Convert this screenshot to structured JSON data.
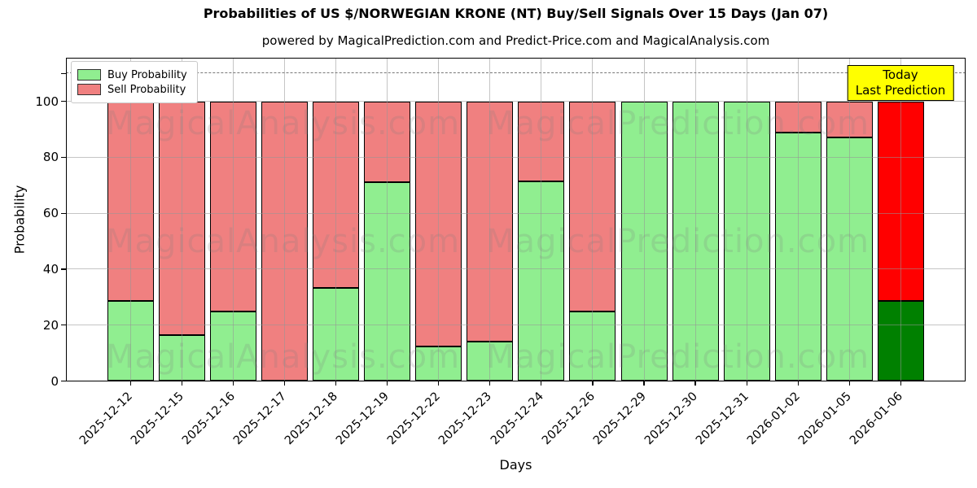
{
  "title": "Probabilities of US $/NORWEGIAN KRONE (NT) Buy/Sell Signals Over 15 Days (Jan 07)",
  "subtitle": "powered by MagicalPrediction.com and Predict-Price.com and MagicalAnalysis.com",
  "axes": {
    "xlabel": "Days",
    "ylabel": "Probability",
    "yticks": [
      0,
      20,
      40,
      60,
      80,
      100
    ],
    "dashed_line_value": 110,
    "grid": true
  },
  "legend": {
    "items": [
      {
        "label": "Buy Probability",
        "color": "#90EE90"
      },
      {
        "label": "Sell Probability",
        "color": "#F08080"
      }
    ]
  },
  "annotation": {
    "lines": [
      "Today",
      "Last Prediction"
    ],
    "bg_color": "#FFFF00"
  },
  "watermarks": {
    "left": "MagicalAnalysis.com",
    "right": "MagicalPrediction.com"
  },
  "chart_data": {
    "type": "bar",
    "stacked": true,
    "title": "Probabilities of US $/NORWEGIAN KRONE (NT) Buy/Sell Signals Over 15 Days (Jan 07)",
    "xlabel": "Days",
    "ylabel": "Probability",
    "ylim": [
      0,
      115
    ],
    "grid": true,
    "legend_position": "upper left",
    "bar_edge_color": "#000000",
    "categories": [
      "2025-12-12",
      "2025-12-15",
      "2025-12-16",
      "2025-12-17",
      "2025-12-18",
      "2025-12-19",
      "2025-12-22",
      "2025-12-23",
      "2025-12-24",
      "2025-12-26",
      "2025-12-29",
      "2025-12-30",
      "2025-12-31",
      "2026-01-02",
      "2026-01-05",
      "2026-01-06"
    ],
    "series": [
      {
        "name": "Buy Probability",
        "color": "#90EE90",
        "values": [
          28.6,
          16.5,
          25.0,
          0.0,
          33.3,
          71.0,
          12.5,
          14.0,
          71.4,
          25.0,
          100.0,
          100.0,
          100.0,
          88.9,
          87.0,
          28.6
        ]
      },
      {
        "name": "Sell Probability",
        "color": "#F08080",
        "values": [
          71.4,
          83.5,
          75.0,
          100.0,
          66.7,
          29.0,
          87.5,
          86.0,
          28.6,
          75.0,
          0.0,
          0.0,
          0.0,
          11.1,
          13.0,
          71.4
        ]
      }
    ],
    "last_bar_colors": {
      "buy": "#008000",
      "sell": "#FF0000"
    },
    "threshold_dashed_line": 110
  }
}
